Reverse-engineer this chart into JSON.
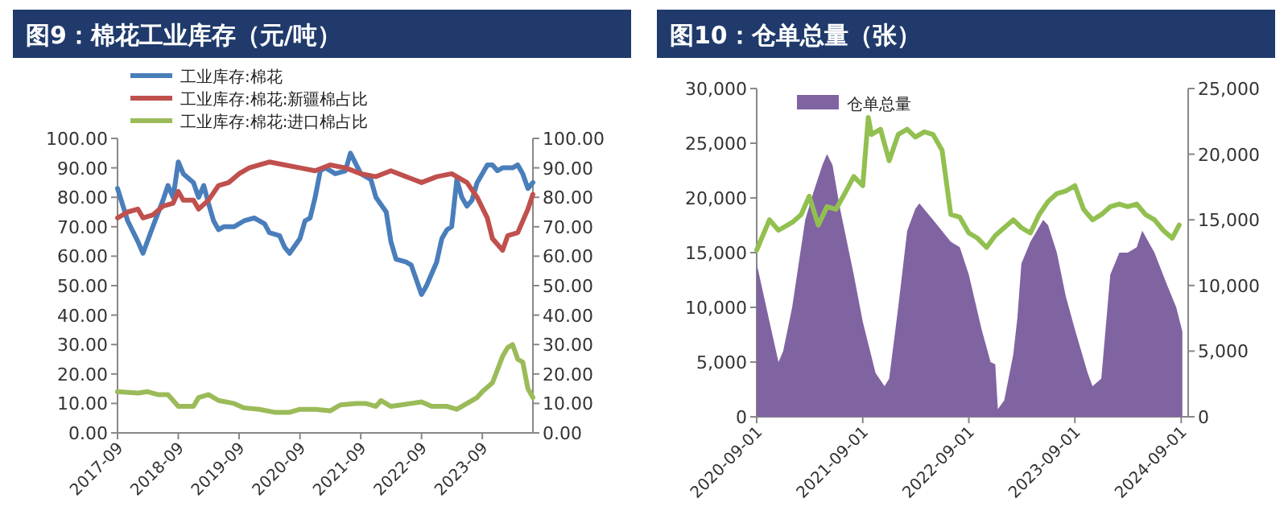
{
  "chart_data": [
    {
      "type": "line",
      "title": "图9：棉花工业库存（元/吨）",
      "legend": "top left",
      "xlim": [
        "2017-09",
        "2024-07"
      ],
      "xticks": [
        "2017-09",
        "2018-09",
        "2019-09",
        "2020-09",
        "2021-09",
        "2022-09",
        "2023-09"
      ],
      "ylim": [
        0,
        100
      ],
      "yticks": [
        {
          "value": 0,
          "label": "0.00"
        },
        {
          "value": 10,
          "label": "10.00"
        },
        {
          "value": 20,
          "label": "20.00"
        },
        {
          "value": 30,
          "label": "30.00"
        },
        {
          "value": 40,
          "label": "40.00"
        },
        {
          "value": 50,
          "label": "50.00"
        },
        {
          "value": 60,
          "label": "60.00"
        },
        {
          "value": 70,
          "label": "70.00"
        },
        {
          "value": 80,
          "label": "80.00"
        },
        {
          "value": 90,
          "label": "90.00"
        },
        {
          "value": 100,
          "label": "100.00"
        }
      ],
      "y2lim": [
        0,
        100
      ],
      "y2ticks": [
        {
          "value": 0,
          "label": "0.00"
        },
        {
          "value": 10,
          "label": "10.00"
        },
        {
          "value": 20,
          "label": "20.00"
        },
        {
          "value": 30,
          "label": "30.00"
        },
        {
          "value": 40,
          "label": "40.00"
        },
        {
          "value": 50,
          "label": "50.00"
        },
        {
          "value": 60,
          "label": "60.00"
        },
        {
          "value": 70,
          "label": "70.00"
        },
        {
          "value": 80,
          "label": "80.00"
        },
        {
          "value": 90,
          "label": "90.00"
        },
        {
          "value": 100,
          "label": "100.00"
        }
      ],
      "series": [
        {
          "name": "工业库存:棉花",
          "color": "#4a7ebb",
          "x": [
            "2017-09",
            "2017-11",
            "2018-01",
            "2018-02",
            "2018-04",
            "2018-06",
            "2018-07",
            "2018-08",
            "2018-09",
            "2018-10",
            "2018-12",
            "2019-01",
            "2019-02",
            "2019-03",
            "2019-04",
            "2019-05",
            "2019-06",
            "2019-08",
            "2019-10",
            "2019-12",
            "2020-02",
            "2020-03",
            "2020-05",
            "2020-06",
            "2020-07",
            "2020-09",
            "2020-10",
            "2020-11",
            "2020-12",
            "2021-01",
            "2021-02",
            "2021-04",
            "2021-06",
            "2021-07",
            "2021-09",
            "2021-11",
            "2021-12",
            "2022-02",
            "2022-03",
            "2022-04",
            "2022-06",
            "2022-07",
            "2022-08",
            "2022-09",
            "2022-10",
            "2022-12",
            "2023-01",
            "2023-02",
            "2023-03",
            "2023-04",
            "2023-05",
            "2023-06",
            "2023-07",
            "2023-08",
            "2023-09",
            "2023-10",
            "2023-11",
            "2023-12",
            "2024-01",
            "2024-03",
            "2024-04",
            "2024-05",
            "2024-06",
            "2024-07"
          ],
          "values": [
            83,
            72,
            65,
            61,
            70,
            79,
            84,
            80,
            92,
            88,
            85,
            80,
            84,
            78,
            72,
            69,
            70,
            70,
            72,
            73,
            71,
            68,
            67,
            63,
            61,
            66,
            72,
            73,
            80,
            89,
            90,
            88,
            89,
            95,
            88,
            86,
            80,
            75,
            65,
            59,
            58,
            57,
            52,
            47,
            50,
            58,
            66,
            69,
            70,
            86,
            80,
            77,
            79,
            85,
            88,
            91,
            91,
            89,
            90,
            90,
            91,
            88,
            83,
            85
          ]
        },
        {
          "name": "工业库存:棉花:新疆棉占比",
          "color": "#c0504d",
          "x": [
            "2017-09",
            "2017-11",
            "2018-01",
            "2018-02",
            "2018-04",
            "2018-06",
            "2018-08",
            "2018-09",
            "2018-10",
            "2018-12",
            "2019-01",
            "2019-03",
            "2019-05",
            "2019-07",
            "2019-09",
            "2019-11",
            "2020-01",
            "2020-03",
            "2020-06",
            "2020-09",
            "2020-12",
            "2021-03",
            "2021-06",
            "2021-09",
            "2021-12",
            "2022-03",
            "2022-06",
            "2022-09",
            "2022-12",
            "2023-03",
            "2023-06",
            "2023-08",
            "2023-10",
            "2023-11",
            "2024-01",
            "2024-02",
            "2024-04",
            "2024-06",
            "2024-07"
          ],
          "values": [
            73,
            75,
            76,
            73,
            74,
            77,
            78,
            82,
            79,
            79,
            76,
            79,
            84,
            85,
            88,
            90,
            91,
            92,
            91,
            90,
            89,
            91,
            90,
            88,
            87,
            89,
            87,
            85,
            87,
            88,
            85,
            80,
            73,
            66,
            62,
            67,
            68,
            76,
            81
          ]
        },
        {
          "name": "工业库存:棉花:进口棉占比",
          "color": "#9bbb59",
          "x": [
            "2017-09",
            "2018-01",
            "2018-03",
            "2018-05",
            "2018-07",
            "2018-09",
            "2018-12",
            "2019-01",
            "2019-03",
            "2019-05",
            "2019-08",
            "2019-10",
            "2020-01",
            "2020-04",
            "2020-07",
            "2020-09",
            "2020-12",
            "2021-03",
            "2021-05",
            "2021-08",
            "2021-10",
            "2021-12",
            "2022-01",
            "2022-03",
            "2022-05",
            "2022-07",
            "2022-09",
            "2022-11",
            "2023-02",
            "2023-04",
            "2023-06",
            "2023-08",
            "2023-09",
            "2023-11",
            "2024-01",
            "2024-02",
            "2024-03",
            "2024-04",
            "2024-05",
            "2024-06",
            "2024-07"
          ],
          "values": [
            14,
            13.5,
            14,
            13,
            13,
            9,
            9,
            12,
            13,
            11,
            10,
            8.5,
            8,
            7,
            7,
            8,
            8,
            7.5,
            9.5,
            10,
            10,
            9,
            11,
            9,
            9.5,
            10,
            10.5,
            9,
            9,
            8,
            10,
            12,
            14,
            17,
            26,
            29,
            30,
            25,
            24,
            15,
            12
          ]
        }
      ]
    },
    {
      "type": "area",
      "title": "图10：仓单总量（张）",
      "legend": "top left",
      "xlim": [
        "2020-09-01",
        "2024-09-25"
      ],
      "xticks": [
        "2020-09-01",
        "2021-09-01",
        "2022-09-01",
        "2023-09-01",
        "2024-09-01"
      ],
      "ylim": [
        0,
        30000
      ],
      "yticks": [
        0,
        {
          "value": 5000,
          "label": "5,000"
        },
        {
          "value": 10000,
          "label": "10,000"
        },
        {
          "value": 15000,
          "label": "15,000"
        },
        {
          "value": 20000,
          "label": "20,000"
        },
        {
          "value": 25000,
          "label": "25,000"
        },
        {
          "value": 30000,
          "label": "30,000"
        }
      ],
      "y2lim": [
        0,
        25000
      ],
      "y2ticks": [
        0,
        {
          "value": 5000,
          "label": "5,000"
        },
        {
          "value": 10000,
          "label": "10,000"
        },
        {
          "value": 15000,
          "label": "15,000"
        },
        {
          "value": 20000,
          "label": "20,000"
        },
        {
          "value": 25000,
          "label": "25,000"
        }
      ],
      "series": [
        {
          "name": "仓单总量",
          "color": "#8064a2",
          "x": [
            "2020-09-01",
            "2020-10-15",
            "2020-11-15",
            "2020-12-01",
            "2021-01-01",
            "2021-02-15",
            "2021-03-15",
            "2021-04-15",
            "2021-05-01",
            "2021-05-20",
            "2021-06-15",
            "2021-08-01",
            "2021-09-01",
            "2021-10-15",
            "2021-11-15",
            "2021-12-01",
            "2022-01-01",
            "2022-02-01",
            "2022-03-01",
            "2022-03-15",
            "2022-05-01",
            "2022-07-01",
            "2022-08-01",
            "2022-09-01",
            "2022-10-15",
            "2022-11-15",
            "2022-12-01",
            "2022-12-10",
            "2023-01-01",
            "2023-02-01",
            "2023-02-15",
            "2023-03-01",
            "2023-04-01",
            "2023-05-15",
            "2023-06-01",
            "2023-07-01",
            "2023-08-01",
            "2023-09-01",
            "2023-10-15",
            "2023-11-01",
            "2023-12-01",
            "2024-01-01",
            "2024-02-01",
            "2024-03-01",
            "2024-04-01",
            "2024-04-20",
            "2024-06-01",
            "2024-07-15",
            "2024-08-15",
            "2024-09-05"
          ],
          "values": [
            14000,
            8700,
            5000,
            6000,
            10000,
            18000,
            20500,
            23000,
            24000,
            23000,
            19000,
            13000,
            8700,
            4000,
            2800,
            3500,
            10000,
            17000,
            19000,
            19500,
            18000,
            16000,
            15500,
            13000,
            8000,
            5000,
            4800,
            700,
            1500,
            5700,
            9000,
            14000,
            16000,
            18000,
            17500,
            15000,
            11000,
            8000,
            4000,
            2800,
            3500,
            13000,
            15000,
            15000,
            15500,
            17000,
            15000,
            12000,
            10000,
            7800
          ]
        },
        {
          "type": "line",
          "axis": "y2",
          "color": "#92c050",
          "x": [
            "2020-09-01",
            "2020-10-15",
            "2020-11-15",
            "2021-01-01",
            "2021-02-01",
            "2021-03-01",
            "2021-04-01",
            "2021-05-01",
            "2021-06-01",
            "2021-07-01",
            "2021-08-01",
            "2021-09-01",
            "2021-09-20",
            "2021-10-01",
            "2021-11-01",
            "2021-12-01",
            "2022-01-01",
            "2022-02-01",
            "2022-03-01",
            "2022-04-01",
            "2022-05-01",
            "2022-06-01",
            "2022-07-01",
            "2022-08-01",
            "2022-09-01",
            "2022-10-01",
            "2022-11-01",
            "2022-12-01",
            "2023-01-01",
            "2023-02-01",
            "2023-03-01",
            "2023-04-01",
            "2023-05-01",
            "2023-06-01",
            "2023-07-01",
            "2023-08-01",
            "2023-09-01",
            "2023-10-01",
            "2023-11-01",
            "2023-12-01",
            "2024-01-01",
            "2024-02-01",
            "2024-03-01",
            "2024-04-01",
            "2024-05-01",
            "2024-06-01",
            "2024-07-01",
            "2024-08-01",
            "2024-08-25"
          ],
          "values": [
            12700,
            15000,
            14200,
            14800,
            15400,
            16800,
            14600,
            16000,
            15800,
            17000,
            18300,
            17600,
            22800,
            21500,
            21900,
            19500,
            21500,
            21900,
            21300,
            21700,
            21500,
            20300,
            15400,
            15200,
            14000,
            13600,
            12900,
            13800,
            14400,
            15000,
            14400,
            14000,
            15400,
            16400,
            17000,
            17200,
            17600,
            15800,
            15000,
            15400,
            16000,
            16200,
            16000,
            16200,
            15400,
            15000,
            14200,
            13600,
            14600
          ]
        }
      ]
    }
  ]
}
